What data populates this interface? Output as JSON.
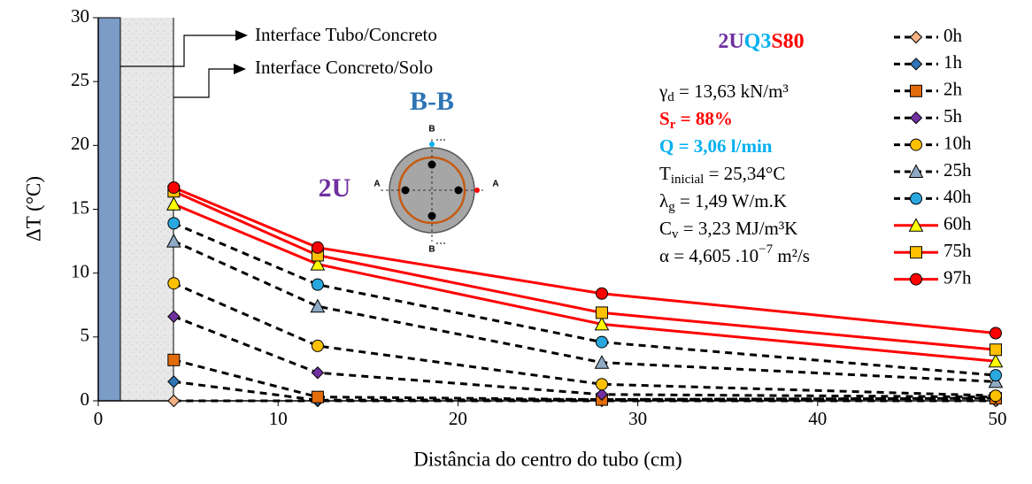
{
  "chart_data": {
    "type": "line",
    "xlabel": "Distância do centro do tubo (cm)",
    "ylabel": "ΔT (°C)",
    "xlim": [
      0,
      50
    ],
    "xticks": [
      0,
      10,
      20,
      30,
      40,
      50
    ],
    "ylim": [
      0,
      30
    ],
    "yticks": [
      0,
      5,
      10,
      15,
      20,
      25,
      30
    ],
    "x": [
      4.2,
      12.2,
      28.0,
      49.9
    ],
    "series": [
      {
        "name": "0h",
        "color": "#f4b183",
        "line_color": "#000000",
        "dashed": true,
        "marker": "diamond",
        "values": [
          0,
          0,
          0,
          0
        ]
      },
      {
        "name": "1h",
        "color": "#2e75b6",
        "line_color": "#000000",
        "dashed": true,
        "marker": "diamond",
        "values": [
          1.5,
          0.05,
          0.1,
          0.2
        ]
      },
      {
        "name": "2h",
        "color": "#e36c0a",
        "line_color": "#000000",
        "dashed": true,
        "marker": "square",
        "values": [
          3.2,
          0.3,
          0.1,
          0.2
        ]
      },
      {
        "name": "5h",
        "color": "#7030a0",
        "line_color": "#000000",
        "dashed": true,
        "marker": "diamond",
        "values": [
          6.6,
          2.2,
          0.5,
          0.3
        ]
      },
      {
        "name": "10h",
        "color": "#ffc000",
        "line_color": "#000000",
        "dashed": true,
        "marker": "circle",
        "values": [
          9.2,
          4.3,
          1.3,
          0.4
        ]
      },
      {
        "name": "25h",
        "color": "#8faac4",
        "line_color": "#000000",
        "dashed": true,
        "marker": "triangle",
        "values": [
          12.5,
          7.4,
          3.0,
          1.5
        ]
      },
      {
        "name": "40h",
        "color": "#29a8e0",
        "line_color": "#000000",
        "dashed": true,
        "marker": "circle",
        "values": [
          13.9,
          9.1,
          4.6,
          2.0
        ]
      },
      {
        "name": "60h",
        "color": "#ffff00",
        "line_color": "#ff0000",
        "dashed": false,
        "marker": "triangle",
        "values": [
          15.4,
          10.7,
          6.0,
          3.1
        ]
      },
      {
        "name": "75h",
        "color": "#ffc000",
        "line_color": "#ff0000",
        "dashed": false,
        "marker": "square",
        "values": [
          16.4,
          11.4,
          6.9,
          4.0
        ]
      },
      {
        "name": "97h",
        "color": "#ff0000",
        "line_color": "#ff0000",
        "dashed": false,
        "marker": "circle",
        "values": [
          16.7,
          12.0,
          8.4,
          5.3
        ]
      }
    ],
    "annotations": {
      "pipe_interface": "Interface Tubo/Concreto",
      "soil_interface": "Interface Concreto/Solo",
      "section": "B-B",
      "config": "2U",
      "section_a": "A",
      "section_b": "B",
      "test_id": [
        {
          "text": "2U",
          "color": "#7030a0"
        },
        {
          "text": "Q3",
          "color": "#00b0f0"
        },
        {
          "text": "S80",
          "color": "#ff0000"
        }
      ],
      "properties": [
        {
          "text": "γ",
          "sub": "d",
          "rest": " = 13,63 kN/m³",
          "color": "#000000"
        },
        {
          "text": "S",
          "sub": "r",
          "rest": " = 88%",
          "color": "#ff0000",
          "bold": true
        },
        {
          "text": "Q = 3,06 l/min",
          "color": "#00b0f0",
          "bold": true
        },
        {
          "text": "T",
          "sub": "inicial",
          "rest": " = 25,34°C",
          "color": "#000000"
        },
        {
          "text": "λ",
          "sub": "g",
          "rest": " = 1,49 W/m.K",
          "color": "#000000"
        },
        {
          "text": "C",
          "sub": "v",
          "rest": " = 3,23 MJ/m³K",
          "color": "#000000"
        },
        {
          "text": "α = 4,605 .10",
          "sup": "−7",
          "rest": " m²/s",
          "color": "#000000"
        }
      ]
    }
  }
}
